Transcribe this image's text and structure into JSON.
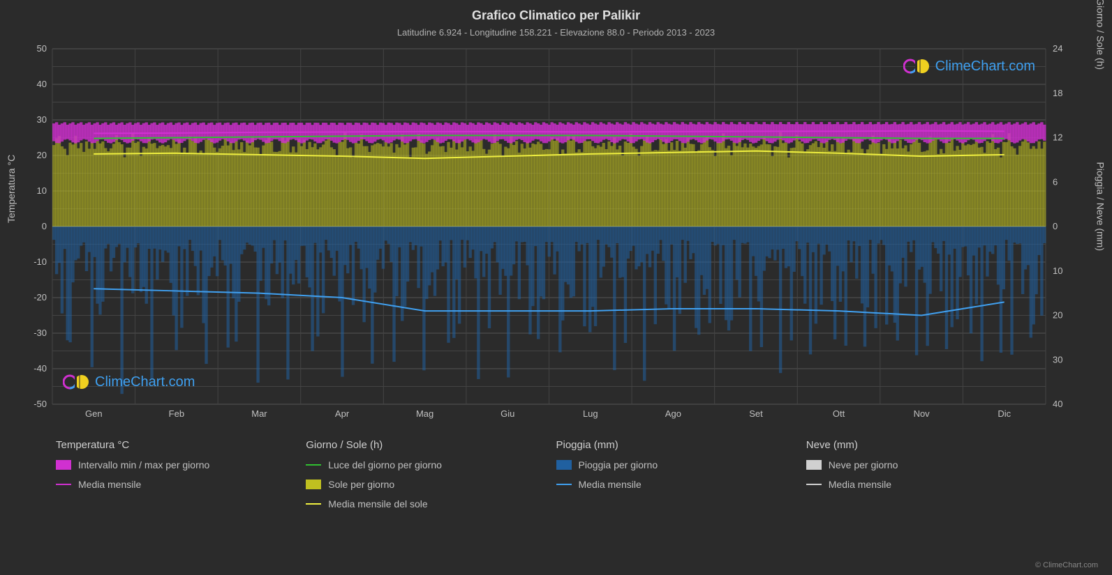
{
  "title": "Grafico Climatico per Palikir",
  "subtitle": "Latitudine 6.924 - Longitudine 158.221 - Elevazione 88.0 - Periodo 2013 - 2023",
  "axis_left_label": "Temperatura °C",
  "axis_right_top_label": "Giorno / Sole (h)",
  "axis_right_bottom_label": "Pioggia / Neve (mm)",
  "copyright_text": "© ClimeChart.com",
  "watermark_text": "ClimeChart.com",
  "background_color": "#2b2b2b",
  "grid_color": "#555555",
  "grid_color_minor": "#444444",
  "text_color": "#c0c0c0",
  "months": [
    "Gen",
    "Feb",
    "Mar",
    "Apr",
    "Mag",
    "Giu",
    "Lug",
    "Ago",
    "Set",
    "Ott",
    "Nov",
    "Dic"
  ],
  "y_left": {
    "min": -50,
    "max": 50,
    "step": 10
  },
  "y_right_top": {
    "min": 0,
    "max": 24,
    "step": 6
  },
  "y_right_bottom": {
    "min": 0,
    "max": 40,
    "step": 10
  },
  "series": {
    "temp_range": {
      "min": 24,
      "max": 29,
      "color_fill": "#d030d0",
      "color_stroke": "#b020b0"
    },
    "temp_mean": {
      "values": [
        26.2,
        26.3,
        26.5,
        26.6,
        26.7,
        26.7,
        26.6,
        26.7,
        26.8,
        26.8,
        26.9,
        26.8
      ],
      "color": "#d030d0"
    },
    "daylight": {
      "values": [
        11.9,
        12.0,
        12.1,
        12.2,
        12.3,
        12.3,
        12.3,
        12.2,
        12.1,
        12.0,
        11.9,
        11.9
      ],
      "color": "#30c030"
    },
    "sun_band": {
      "max_hours": 11,
      "color_fill": "#c0c020"
    },
    "sun_mean": {
      "values": [
        9.8,
        9.9,
        9.7,
        9.5,
        9.2,
        9.5,
        9.8,
        10.0,
        10.2,
        9.9,
        9.5,
        9.7
      ],
      "color": "#f0f040"
    },
    "rain_band": {
      "max_mm": 35,
      "color_fill": "#2060a0"
    },
    "rain_mean": {
      "values": [
        14,
        14.5,
        15,
        16,
        19,
        19,
        19,
        18.5,
        18.5,
        19,
        20,
        17
      ],
      "color": "#40a0f0"
    },
    "snow_mean": {
      "values": [
        0,
        0,
        0,
        0,
        0,
        0,
        0,
        0,
        0,
        0,
        0,
        0
      ],
      "color": "#d0d0d0"
    },
    "snow_band_color": "#d0d0d0"
  },
  "legend": {
    "cols": [
      {
        "header": "Temperatura °C",
        "items": [
          {
            "type": "swatch",
            "color": "#d030d0",
            "label": "Intervallo min / max per giorno"
          },
          {
            "type": "line",
            "color": "#d030d0",
            "label": "Media mensile"
          }
        ]
      },
      {
        "header": "Giorno / Sole (h)",
        "items": [
          {
            "type": "line",
            "color": "#30c030",
            "label": "Luce del giorno per giorno"
          },
          {
            "type": "swatch",
            "color": "#c0c020",
            "label": "Sole per giorno"
          },
          {
            "type": "line",
            "color": "#f0f040",
            "label": "Media mensile del sole"
          }
        ]
      },
      {
        "header": "Pioggia (mm)",
        "items": [
          {
            "type": "swatch",
            "color": "#2060a0",
            "label": "Pioggia per giorno"
          },
          {
            "type": "line",
            "color": "#40a0f0",
            "label": "Media mensile"
          }
        ]
      },
      {
        "header": "Neve (mm)",
        "items": [
          {
            "type": "swatch",
            "color": "#d0d0d0",
            "label": "Neve per giorno"
          },
          {
            "type": "line",
            "color": "#d0d0d0",
            "label": "Media mensile"
          }
        ]
      }
    ]
  }
}
